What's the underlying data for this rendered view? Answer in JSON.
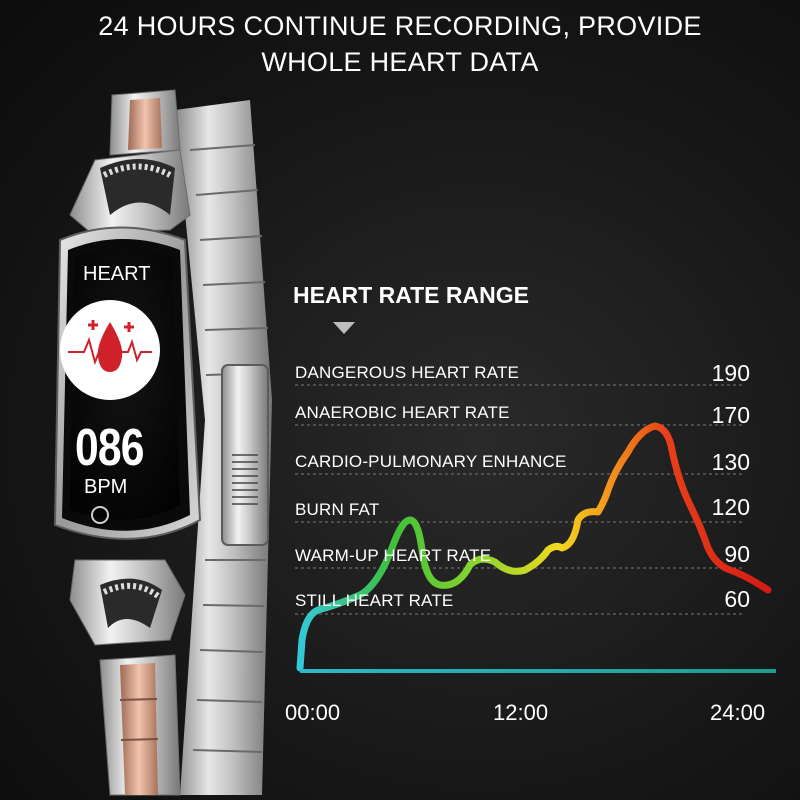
{
  "headline": {
    "line1": "24 HOURS CONTINUE RECORDING, PROVIDE",
    "line2": "WHOLE HEART DATA"
  },
  "device_screen": {
    "mode_label": "HEART",
    "bpm_value": "086",
    "bpm_unit": "BPM",
    "icon": "heart-blood-drop-icon"
  },
  "chart_data": {
    "type": "line",
    "title": "HEART RATE RANGE",
    "zones": [
      {
        "label": "DANGEROUS HEART RATE",
        "value": "190"
      },
      {
        "label": "ANAEROBIC HEART RATE",
        "value": "170"
      },
      {
        "label": "CARDIO-PULMONARY ENHANCE",
        "value": "130"
      },
      {
        "label": "BURN FAT",
        "value": "120"
      },
      {
        "label": "WARM-UP HEART RATE",
        "value": "90"
      },
      {
        "label": "STILL HEART RATE",
        "value": "60"
      }
    ],
    "x_ticks": [
      "00:00",
      "12:00",
      "24:00"
    ],
    "gradient_colors": [
      "#33c9d8",
      "#3fbf3a",
      "#8cd62c",
      "#f2d81e",
      "#f29a1c",
      "#e8401a",
      "#d41a14"
    ],
    "baseline_color": "#1fb0a8"
  }
}
